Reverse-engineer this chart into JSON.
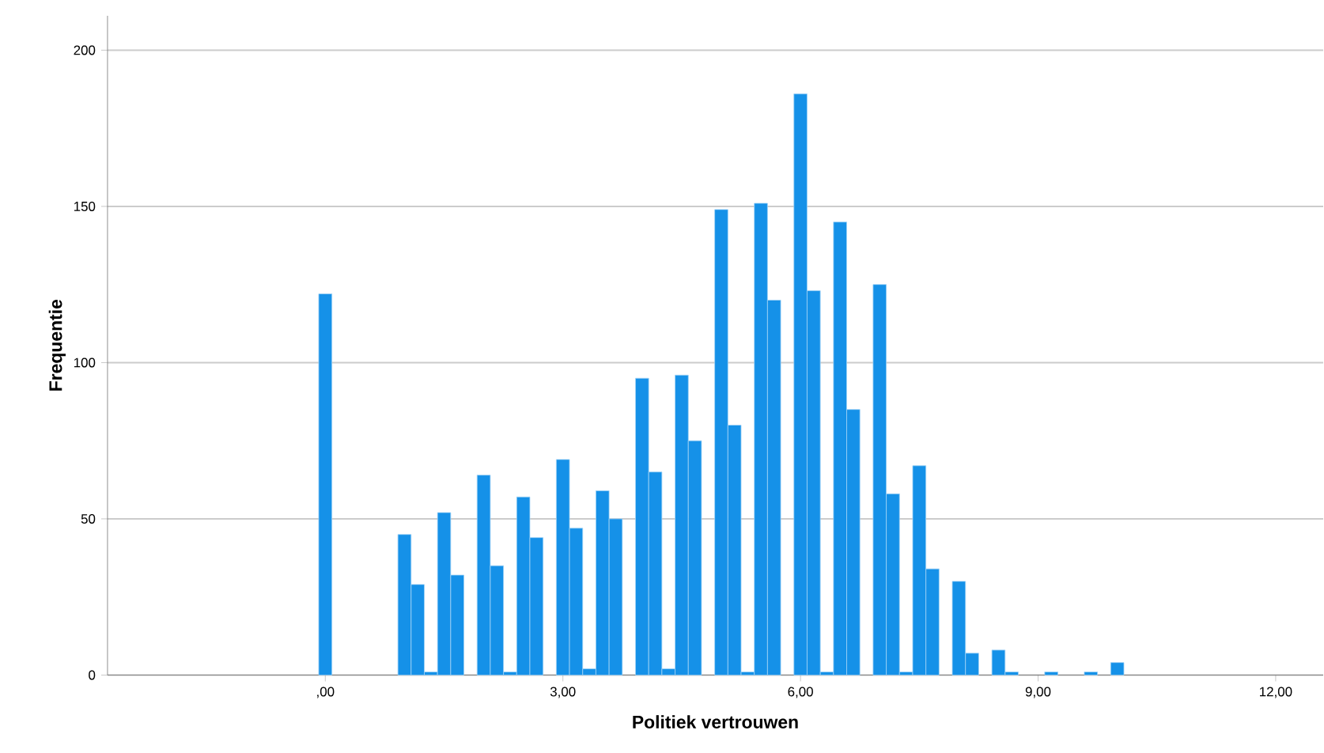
{
  "chart_data": {
    "type": "bar",
    "xlabel": "Politiek vertrouwen",
    "ylabel": "Frequentie",
    "x": [
      0,
      1,
      1.1667,
      1.3333,
      1.5,
      1.6667,
      2,
      2.1667,
      2.3333,
      2.5,
      2.6667,
      3,
      3.1667,
      3.3333,
      3.5,
      3.6667,
      4,
      4.1667,
      4.3333,
      4.5,
      4.6667,
      5,
      5.1667,
      5.3333,
      5.5,
      5.6667,
      6,
      6.1667,
      6.3333,
      6.5,
      6.6667,
      7,
      7.1667,
      7.3333,
      7.5,
      7.6667,
      8,
      8.1667,
      8.5,
      8.6667,
      9.1667,
      9.6667,
      10
    ],
    "values": [
      122,
      45,
      29,
      1,
      52,
      32,
      64,
      35,
      1,
      57,
      44,
      69,
      47,
      2,
      59,
      50,
      95,
      65,
      2,
      96,
      75,
      149,
      80,
      1,
      151,
      120,
      186,
      123,
      1,
      145,
      85,
      125,
      58,
      1,
      67,
      34,
      30,
      7,
      8,
      1,
      1,
      1,
      4
    ],
    "color": "#1591e8",
    "xlim": [
      -2.75,
      12.6
    ],
    "xticks": [
      {
        "value": 0,
        "label": ",00"
      },
      {
        "value": 3,
        "label": "3,00"
      },
      {
        "value": 6,
        "label": "6,00"
      },
      {
        "value": 9,
        "label": "9,00"
      },
      {
        "value": 12,
        "label": "12,00"
      }
    ],
    "ylim": [
      0,
      211
    ],
    "yticks": [
      0,
      50,
      100,
      150,
      200
    ],
    "grid": "y"
  }
}
